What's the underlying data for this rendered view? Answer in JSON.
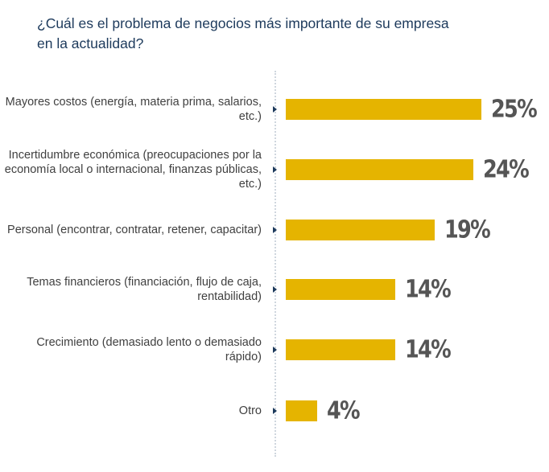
{
  "chart_data": {
    "type": "bar",
    "orientation": "horizontal",
    "title": "¿Cuál es el problema de negocios más importante de su empresa en la actualidad?",
    "categories": [
      "Mayores costos (energía, materia prima, salarios, etc.)",
      "Incertidumbre económica (preocupaciones por la economía local o internacional, finanzas públicas, etc.)",
      "Personal (encontrar, contratar, retener, capacitar)",
      "Temas financieros (financiación, flujo de caja, rentabilidad)",
      "Crecimiento (demasiado lento o demasiado rápido)",
      "Otro"
    ],
    "values": [
      25,
      24,
      19,
      14,
      14,
      4
    ],
    "value_labels": [
      "25%",
      "24%",
      "19%",
      "14%",
      "14%",
      "4%"
    ],
    "color": "#e5b400"
  }
}
